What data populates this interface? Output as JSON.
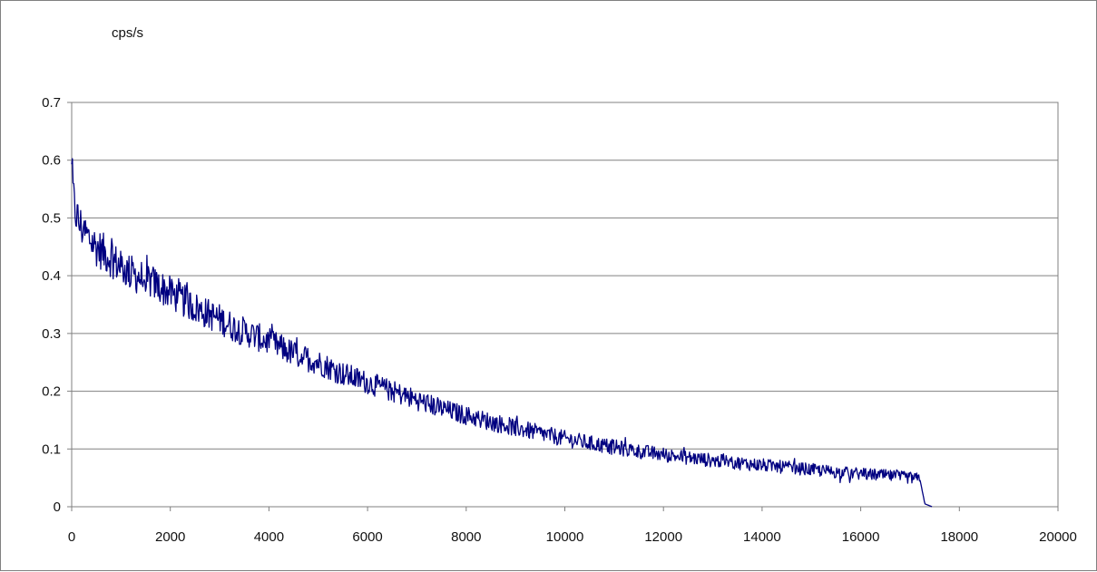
{
  "chart_data": {
    "type": "line",
    "title": "",
    "xlabel": "",
    "ylabel": "cps/s",
    "xlim": [
      0,
      20000
    ],
    "ylim": [
      0,
      0.7
    ],
    "x_ticks": [
      "0",
      "2000",
      "4000",
      "6000",
      "8000",
      "10000",
      "12000",
      "14000",
      "16000",
      "18000",
      "20000"
    ],
    "y_ticks": [
      "0",
      "0.1",
      "0.2",
      "0.3",
      "0.4",
      "0.5",
      "0.6",
      "0.7"
    ],
    "grid": "horizontal",
    "legend": "none",
    "series": [
      {
        "color": "#000080",
        "x": [
          0,
          50,
          150,
          300,
          500,
          800,
          1000,
          1300,
          1600,
          1800,
          2000,
          2300,
          2600,
          3000,
          3300,
          3600,
          4000,
          4500,
          5000,
          5500,
          6000,
          6500,
          7000,
          7500,
          8000,
          8500,
          9000,
          9500,
          10000,
          10500,
          11000,
          11500,
          12000,
          12500,
          13000,
          13500,
          14000,
          14500,
          15000,
          15500,
          16000,
          16500,
          17000,
          17200,
          17300,
          17450
        ],
        "y": [
          0.58,
          0.52,
          0.49,
          0.47,
          0.45,
          0.43,
          0.415,
          0.4,
          0.39,
          0.38,
          0.37,
          0.355,
          0.34,
          0.325,
          0.31,
          0.3,
          0.285,
          0.265,
          0.25,
          0.23,
          0.215,
          0.2,
          0.185,
          0.17,
          0.158,
          0.147,
          0.137,
          0.127,
          0.118,
          0.11,
          0.103,
          0.096,
          0.09,
          0.085,
          0.08,
          0.076,
          0.072,
          0.068,
          0.064,
          0.06,
          0.057,
          0.054,
          0.05,
          0.048,
          0.005,
          0.0
        ]
      }
    ]
  }
}
